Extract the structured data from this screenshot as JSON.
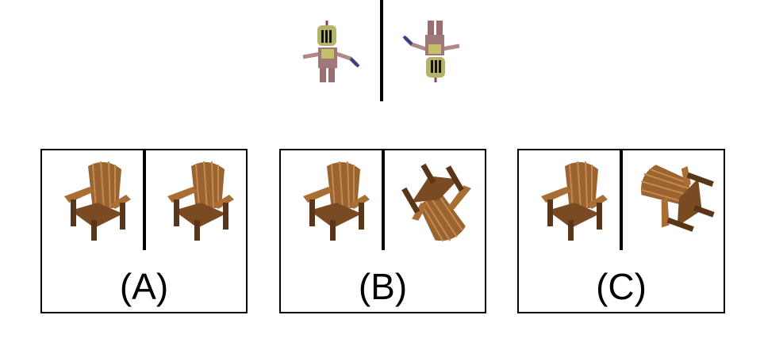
{
  "reference": {
    "left_figure": "knight-upright",
    "right_figure": "knight-upside-down"
  },
  "options": [
    {
      "label": "(A)",
      "left_image": "chair-upright",
      "right_image": "chair-upright"
    },
    {
      "label": "(B)",
      "left_image": "chair-upright",
      "right_image": "chair-rotated"
    },
    {
      "label": "(C)",
      "left_image": "chair-upright",
      "right_image": "chair-rotated-side"
    }
  ],
  "colors": {
    "wood": "#8b5a2b",
    "wood_light": "#b07a3e",
    "wood_dark": "#5a3618",
    "knight_helmet": "#b7b26a",
    "knight_body": "#a0787a"
  }
}
